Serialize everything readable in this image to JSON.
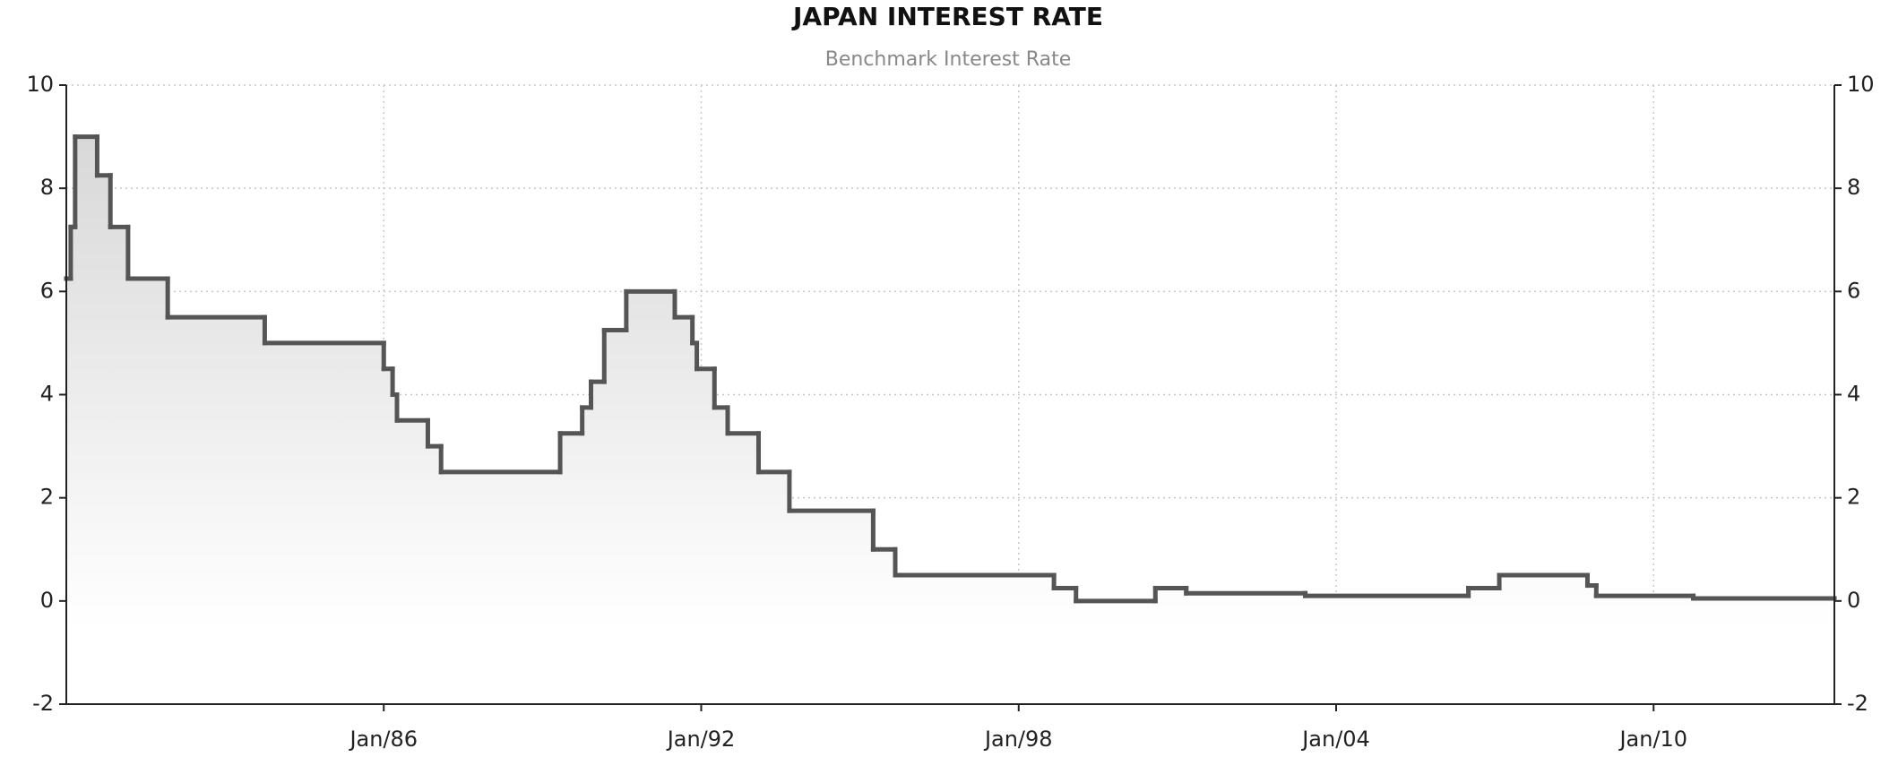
{
  "chart_data": {
    "type": "step-area",
    "title": "JAPAN INTEREST RATE",
    "subtitle": "Benchmark Interest Rate",
    "x": [
      "1980-01",
      "1980-02",
      "1980-03",
      "1980-08",
      "1980-11",
      "1981-03",
      "1981-12",
      "1983-10",
      "1986-01",
      "1986-03",
      "1986-04",
      "1986-11",
      "1987-02",
      "1989-05",
      "1989-10",
      "1989-12",
      "1990-03",
      "1990-08",
      "1991-07",
      "1991-11",
      "1991-12",
      "1992-04",
      "1992-07",
      "1993-02",
      "1993-09",
      "1995-04",
      "1995-09",
      "1998-09",
      "1999-02",
      "2000-08",
      "2001-03",
      "2003-06",
      "2006-07",
      "2007-02",
      "2008-10",
      "2008-12",
      "2010-10"
    ],
    "series": [
      {
        "name": "Benchmark Interest Rate",
        "color": "#555555",
        "values": [
          6.25,
          7.25,
          9.0,
          8.25,
          7.25,
          6.25,
          5.5,
          5.0,
          4.5,
          4.0,
          3.5,
          3.0,
          2.5,
          3.25,
          3.75,
          4.25,
          5.25,
          6.0,
          5.5,
          5.0,
          4.5,
          3.75,
          3.25,
          2.5,
          1.75,
          1.0,
          0.5,
          0.25,
          0.0,
          0.25,
          0.15,
          0.1,
          0.25,
          0.5,
          0.3,
          0.1,
          0.05
        ]
      }
    ],
    "xlim": [
      "1980-01",
      "2013-06"
    ],
    "xticks": [
      {
        "value": "1986-01",
        "label": "Jan/86"
      },
      {
        "value": "1992-01",
        "label": "Jan/92"
      },
      {
        "value": "1998-01",
        "label": "Jan/98"
      },
      {
        "value": "2004-01",
        "label": "Jan/04"
      },
      {
        "value": "2010-01",
        "label": "Jan/10"
      }
    ],
    "ylim": [
      -2,
      10
    ],
    "yticks": [
      -2,
      0,
      2,
      4,
      6,
      8,
      10
    ],
    "y2lim": [
      -2,
      10
    ],
    "y2ticks": [
      -2,
      0,
      2,
      4,
      6,
      8,
      10
    ],
    "grid": true
  }
}
